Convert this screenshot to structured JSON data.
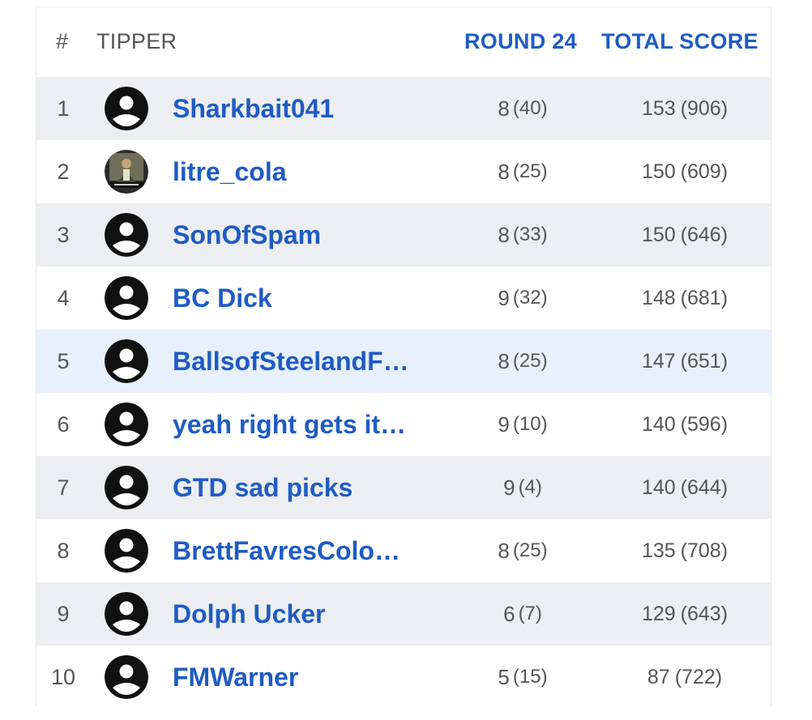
{
  "header": {
    "rank": "#",
    "tipper": "TIPPER",
    "round": "ROUND 24",
    "total": "TOTAL SCORE"
  },
  "colors": {
    "link_blue": "#1f5bc4",
    "row_odd": "#eceef1",
    "row_highlight": "#e8f0fd",
    "text_gray": "#555555"
  },
  "rows": [
    {
      "rank": "1",
      "name": "Sharkbait041",
      "round": "8",
      "round_sub": "(40)",
      "total": "153",
      "total_sub": "(906)",
      "avatar": "default-user-icon"
    },
    {
      "rank": "2",
      "name": "litre_cola",
      "round": "8",
      "round_sub": "(25)",
      "total": "150",
      "total_sub": "(609)",
      "avatar": "photo-avatar"
    },
    {
      "rank": "3",
      "name": "SonOfSpam",
      "round": "8",
      "round_sub": "(33)",
      "total": "150",
      "total_sub": "(646)",
      "avatar": "default-user-icon"
    },
    {
      "rank": "4",
      "name": "BC Dick",
      "round": "9",
      "round_sub": "(32)",
      "total": "148",
      "total_sub": "(681)",
      "avatar": "default-user-icon"
    },
    {
      "rank": "5",
      "name": "BallsofSteelandF…",
      "round": "8",
      "round_sub": "(25)",
      "total": "147",
      "total_sub": "(651)",
      "avatar": "default-user-icon",
      "highlighted": true
    },
    {
      "rank": "6",
      "name": "yeah right gets it…",
      "round": "9",
      "round_sub": "(10)",
      "total": "140",
      "total_sub": "(596)",
      "avatar": "default-user-icon"
    },
    {
      "rank": "7",
      "name": "GTD sad picks",
      "round": "9",
      "round_sub": "(4)",
      "total": "140",
      "total_sub": "(644)",
      "avatar": "default-user-icon"
    },
    {
      "rank": "8",
      "name": "BrettFavresColo…",
      "round": "8",
      "round_sub": "(25)",
      "total": "135",
      "total_sub": "(708)",
      "avatar": "default-user-icon"
    },
    {
      "rank": "9",
      "name": "Dolph Ucker",
      "round": "6",
      "round_sub": "(7)",
      "total": "129",
      "total_sub": "(643)",
      "avatar": "default-user-icon"
    },
    {
      "rank": "10",
      "name": "FMWarner",
      "round": "5",
      "round_sub": "(15)",
      "total": "87",
      "total_sub": "(722)",
      "avatar": "default-user-icon"
    }
  ]
}
